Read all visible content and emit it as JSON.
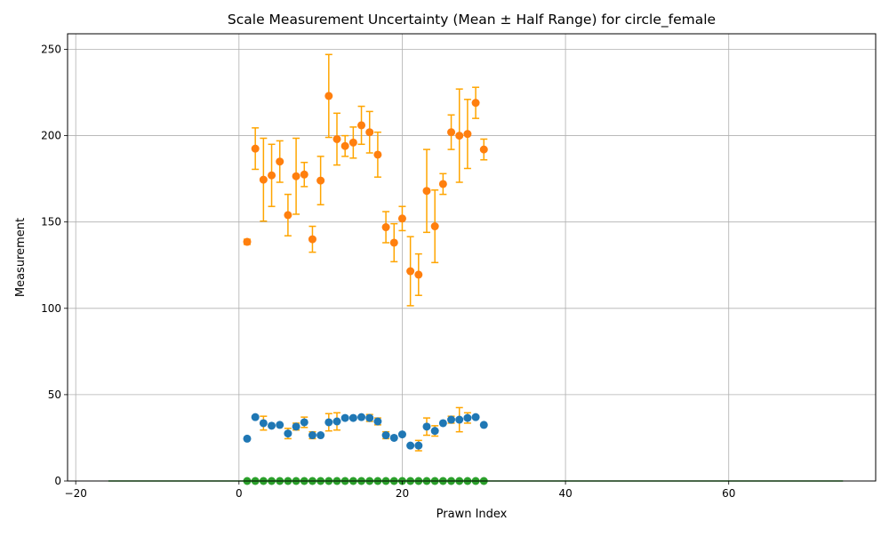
{
  "chart_data": {
    "type": "scatter",
    "title": "Scale Measurement Uncertainty (Mean ± Half Range) for circle_female",
    "xlabel": "Prawn Index",
    "ylabel": "Measurement",
    "xlim": [
      -21,
      78
    ],
    "ylim": [
      0,
      259
    ],
    "xticks": [
      -20,
      0,
      20,
      40,
      60
    ],
    "yticks": [
      0,
      50,
      100,
      150,
      200,
      250
    ],
    "grid": true,
    "legend": "none",
    "colors": {
      "upper_series": "#ff7f0e",
      "upper_errorbar": "#ffa500",
      "lower_series": "#1f77b4",
      "lower_errorbar": "#ffa500",
      "baseline_series": "#2ca02c",
      "grid": "#b0b0b0"
    },
    "reference_line": {
      "x": [
        -16,
        74
      ],
      "y": 0
    },
    "x": [
      1,
      2,
      3,
      4,
      5,
      6,
      7,
      8,
      9,
      10,
      11,
      12,
      13,
      14,
      15,
      16,
      17,
      18,
      19,
      20,
      21,
      22,
      23,
      24,
      25,
      26,
      27,
      28,
      29,
      30
    ],
    "series": [
      {
        "values": [
          138.5,
          192.5,
          174.5,
          177.0,
          185.0,
          154.0,
          176.5,
          177.5,
          140.0,
          174.0,
          223.0,
          198.0,
          194.0,
          196.0,
          206.0,
          202.0,
          189.0,
          147.0,
          138.0,
          152.0,
          121.5,
          119.5,
          168.0,
          147.5,
          172.0,
          202.0,
          200.0,
          201.0,
          219.0,
          192.0
        ],
        "errors": [
          1.5,
          12,
          24,
          18,
          12,
          12,
          22,
          7,
          7.5,
          14,
          24,
          15,
          6,
          9,
          11,
          12,
          13,
          9,
          11,
          7,
          20,
          12,
          24,
          21,
          6,
          10,
          27,
          20,
          9,
          6
        ]
      },
      {
        "values": [
          24.5,
          37.0,
          33.5,
          32.0,
          32.5,
          27.5,
          31.5,
          34.0,
          26.5,
          26.5,
          34.0,
          34.5,
          36.5,
          36.5,
          37.0,
          36.5,
          34.5,
          26.5,
          25.0,
          27.0,
          20.5,
          20.5,
          31.5,
          29.0,
          33.5,
          35.5,
          35.5,
          36.5,
          37.0,
          32.5
        ],
        "errors": [
          0,
          0,
          4,
          0,
          0,
          3,
          2,
          3,
          2,
          0,
          5,
          5,
          0,
          0,
          0,
          2,
          2,
          2,
          0,
          0,
          0,
          3,
          5,
          3,
          0,
          2,
          7,
          3,
          0,
          0
        ]
      },
      {
        "values": [
          0,
          0,
          0,
          0,
          0,
          0,
          0,
          0,
          0,
          0,
          0,
          0,
          0,
          0,
          0,
          0,
          0,
          0,
          0,
          0,
          0,
          0,
          0,
          0,
          0,
          0,
          0,
          0,
          0,
          0
        ]
      }
    ]
  }
}
